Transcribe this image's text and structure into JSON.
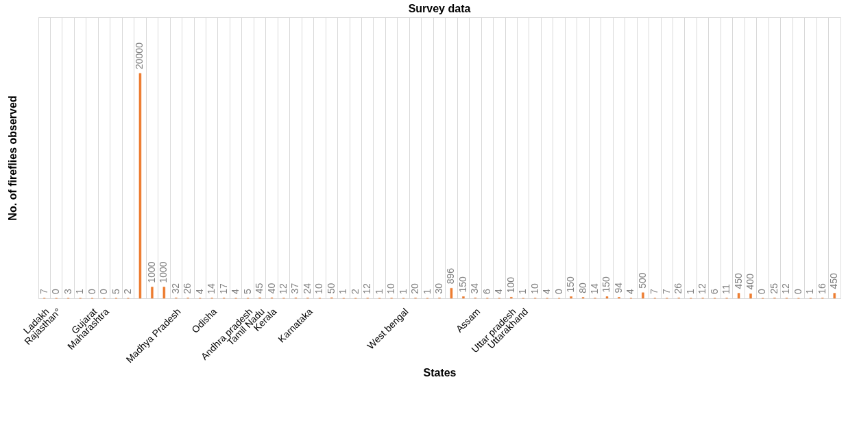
{
  "chart_data": {
    "type": "bar",
    "title": "Survey data",
    "xlabel": "States",
    "ylabel": "No. of fireflies observed",
    "categories": [
      "Ladakh",
      "Rajasthan°",
      null,
      null,
      "Gujarat",
      "Maharashtra",
      null,
      null,
      null,
      null,
      null,
      "Madhya Pradesh",
      null,
      null,
      "Odisha",
      null,
      null,
      "Andhra pradesh",
      "Tamil Nadu",
      "Kerala",
      null,
      null,
      "Karnataka",
      null,
      null,
      null,
      null,
      null,
      null,
      null,
      "West bengal",
      null,
      null,
      null,
      null,
      null,
      "Assam",
      null,
      null,
      "Uttar pradesh",
      "Uttarakhand",
      null,
      null,
      null,
      null,
      null,
      null,
      null,
      null,
      null,
      null,
      null,
      null,
      null,
      null,
      null,
      null,
      null,
      null,
      null,
      null,
      null,
      null,
      null,
      null,
      null,
      null
    ],
    "values": [
      7,
      0,
      3,
      1,
      0,
      0,
      5,
      2,
      20000,
      1000,
      1000,
      32,
      26,
      4,
      14,
      17,
      4,
      5,
      45,
      40,
      12,
      37,
      24,
      10,
      50,
      1,
      2,
      12,
      1,
      10,
      1,
      20,
      1,
      30,
      896,
      150,
      34,
      6,
      4,
      100,
      1,
      10,
      4,
      0,
      150,
      80,
      14,
      150,
      94,
      4,
      500,
      7,
      7,
      26,
      1,
      12,
      6,
      11,
      450,
      400,
      0,
      25,
      12,
      0,
      1,
      16,
      450
    ],
    "color": "#ed7d31",
    "ylim": [
      0,
      25000
    ],
    "data_labels": true,
    "grid": "x",
    "tick_labels": "x"
  }
}
